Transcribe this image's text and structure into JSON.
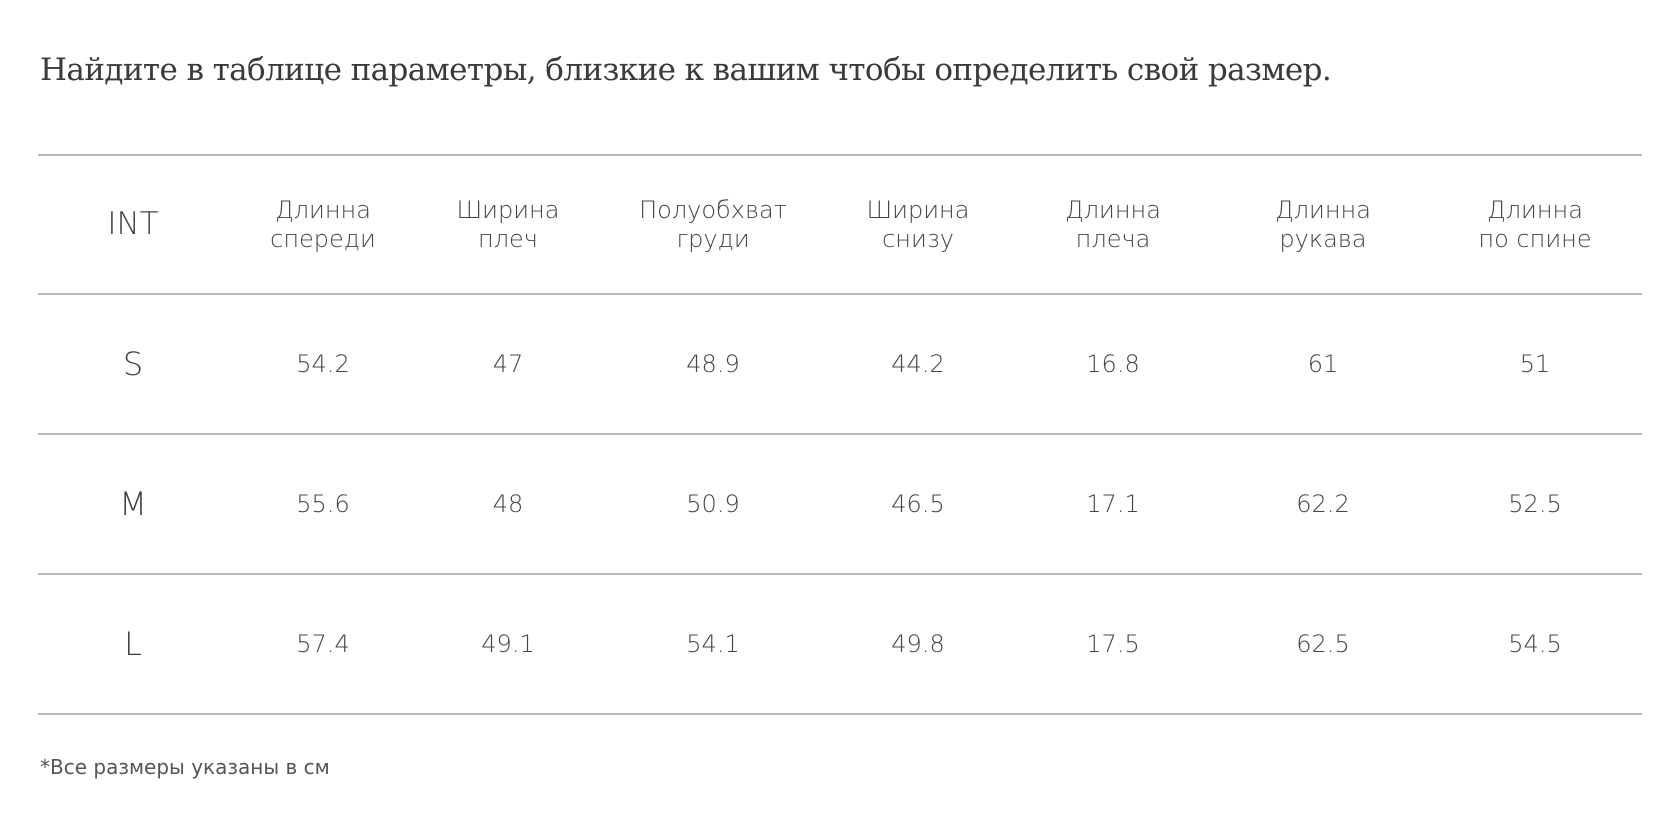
{
  "title": "Найдите в таблице параметры, близкие к вашим чтобы определить свой размер.",
  "table": {
    "header": {
      "int": "INT",
      "columns": [
        {
          "line1": "Длинна",
          "line2": "спереди"
        },
        {
          "line1": "Ширина",
          "line2": "плеч"
        },
        {
          "line1": "Полуобхват",
          "line2": "груди"
        },
        {
          "line1": "Ширина",
          "line2": "снизу"
        },
        {
          "line1": "Длинна",
          "line2": "плеча"
        },
        {
          "line1": "Длинна",
          "line2": "рукава"
        },
        {
          "line1": "Длинна",
          "line2": "по спине"
        }
      ]
    },
    "rows": [
      {
        "size": "S",
        "values": [
          "54.2",
          "47",
          "48.9",
          "44.2",
          "16.8",
          "61",
          "51"
        ]
      },
      {
        "size": "M",
        "values": [
          "55.6",
          "48",
          "50.9",
          "46.5",
          "17.1",
          "62.2",
          "52.5"
        ]
      },
      {
        "size": "L",
        "values": [
          "57.4",
          "49.1",
          "54.1",
          "49.8",
          "17.5",
          "62.5",
          "54.5"
        ]
      }
    ]
  },
  "footnote": "*Все размеры указаны в см"
}
